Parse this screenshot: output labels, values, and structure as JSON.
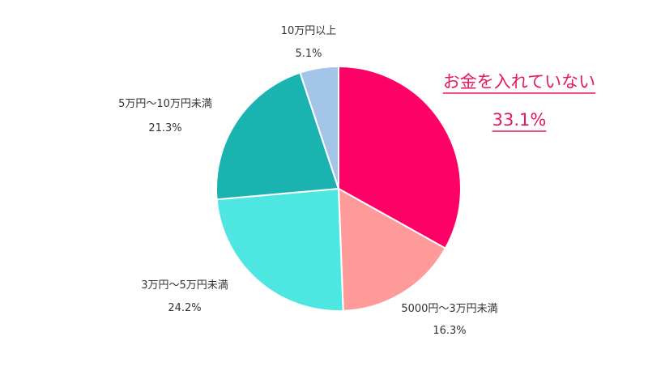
{
  "chart_data": {
    "type": "pie",
    "title": "",
    "start_angle_deg": 0,
    "direction": "clockwise",
    "slices": [
      {
        "label": "お金を入れていない",
        "value": 33.1,
        "value_text": "33.1%",
        "color": "#ff0066",
        "highlight": true
      },
      {
        "label": "5000円〜3万円未満",
        "value": 16.3,
        "value_text": "16.3%",
        "color": "#ff9a9a",
        "highlight": false
      },
      {
        "label": "3万円〜5万円未満",
        "value": 24.2,
        "value_text": "24.2%",
        "color": "#4ee6e0",
        "highlight": false
      },
      {
        "label": "5万円〜10万円未満",
        "value": 21.3,
        "value_text": "21.3%",
        "color": "#1ab3b0",
        "highlight": false
      },
      {
        "label": "10万円以上",
        "value": 5.1,
        "value_text": "5.1%",
        "color": "#a3c6e8",
        "highlight": false
      }
    ]
  }
}
